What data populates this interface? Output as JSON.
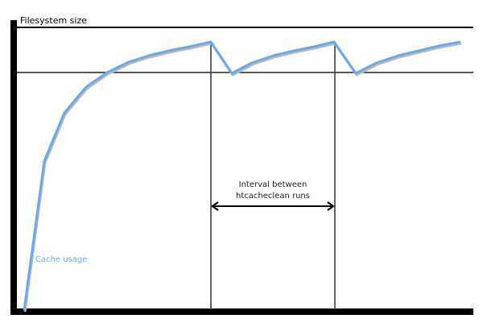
{
  "diagram": {
    "y_axis_label": "Filesystem size",
    "curve_label": "Cache usage",
    "interval_label_line1": "Interval between",
    "interval_label_line2": "htcacheclean runs",
    "colors": {
      "curve": "#6aa9f0",
      "curve_label": "#6aa9f0",
      "axes": "#000000",
      "lines": "#333333"
    }
  }
}
